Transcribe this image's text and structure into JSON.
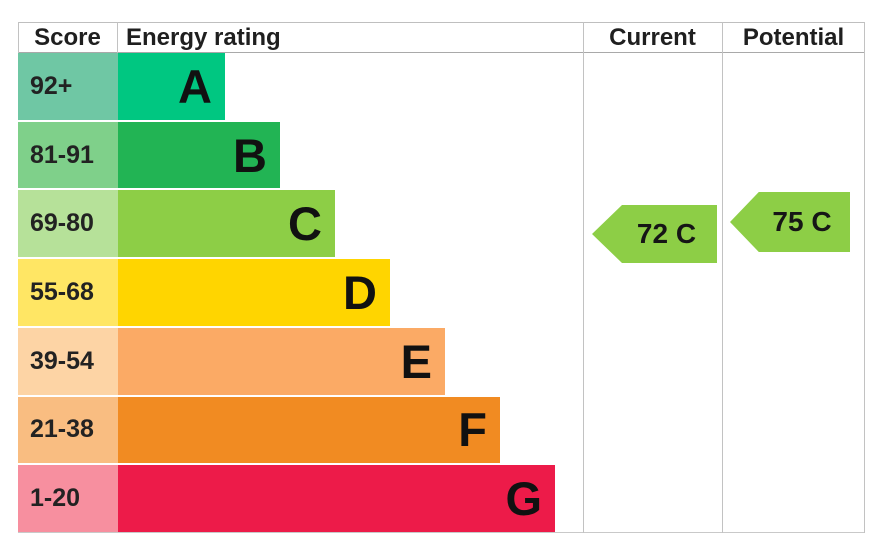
{
  "header": {
    "score": "Score",
    "energy_rating": "Energy rating",
    "current": "Current",
    "potential": "Potential"
  },
  "bands": [
    {
      "letter": "A",
      "range": "92+",
      "bar_color": "#00c781",
      "score_bg": "#6fc7a4"
    },
    {
      "letter": "B",
      "range": "81-91",
      "bar_color": "#22b454",
      "score_bg": "#7fd08a"
    },
    {
      "letter": "C",
      "range": "69-80",
      "bar_color": "#8dce46",
      "score_bg": "#b6e199"
    },
    {
      "letter": "D",
      "range": "55-68",
      "bar_color": "#ffd500",
      "score_bg": "#ffe664"
    },
    {
      "letter": "E",
      "range": "39-54",
      "bar_color": "#fbaa65",
      "score_bg": "#fdd4a5"
    },
    {
      "letter": "F",
      "range": "21-38",
      "bar_color": "#f18b22",
      "score_bg": "#f9bd81"
    },
    {
      "letter": "G",
      "range": "1-20",
      "bar_color": "#ed1b49",
      "score_bg": "#f78f9f"
    }
  ],
  "arrows": {
    "current": {
      "label": "72 C",
      "color": "#8dce46"
    },
    "potential": {
      "label": "75 C",
      "color": "#8dce46"
    }
  },
  "chart_data": {
    "type": "bar",
    "title": "Energy rating",
    "columns": [
      "Score",
      "Energy rating",
      "Current",
      "Potential"
    ],
    "categories": [
      "A",
      "B",
      "C",
      "D",
      "E",
      "F",
      "G"
    ],
    "score_ranges": [
      "92+",
      "81-91",
      "69-80",
      "55-68",
      "39-54",
      "21-38",
      "1-20"
    ],
    "band_colors": [
      "#00c781",
      "#22b454",
      "#8dce46",
      "#ffd500",
      "#fbaa65",
      "#f18b22",
      "#ed1b49"
    ],
    "bar_relative_lengths": [
      1,
      2,
      3,
      4,
      5,
      6,
      7
    ],
    "current": {
      "score": 72,
      "rating": "C"
    },
    "potential": {
      "score": 75,
      "rating": "C"
    },
    "legend_position": "none",
    "grid": false
  }
}
